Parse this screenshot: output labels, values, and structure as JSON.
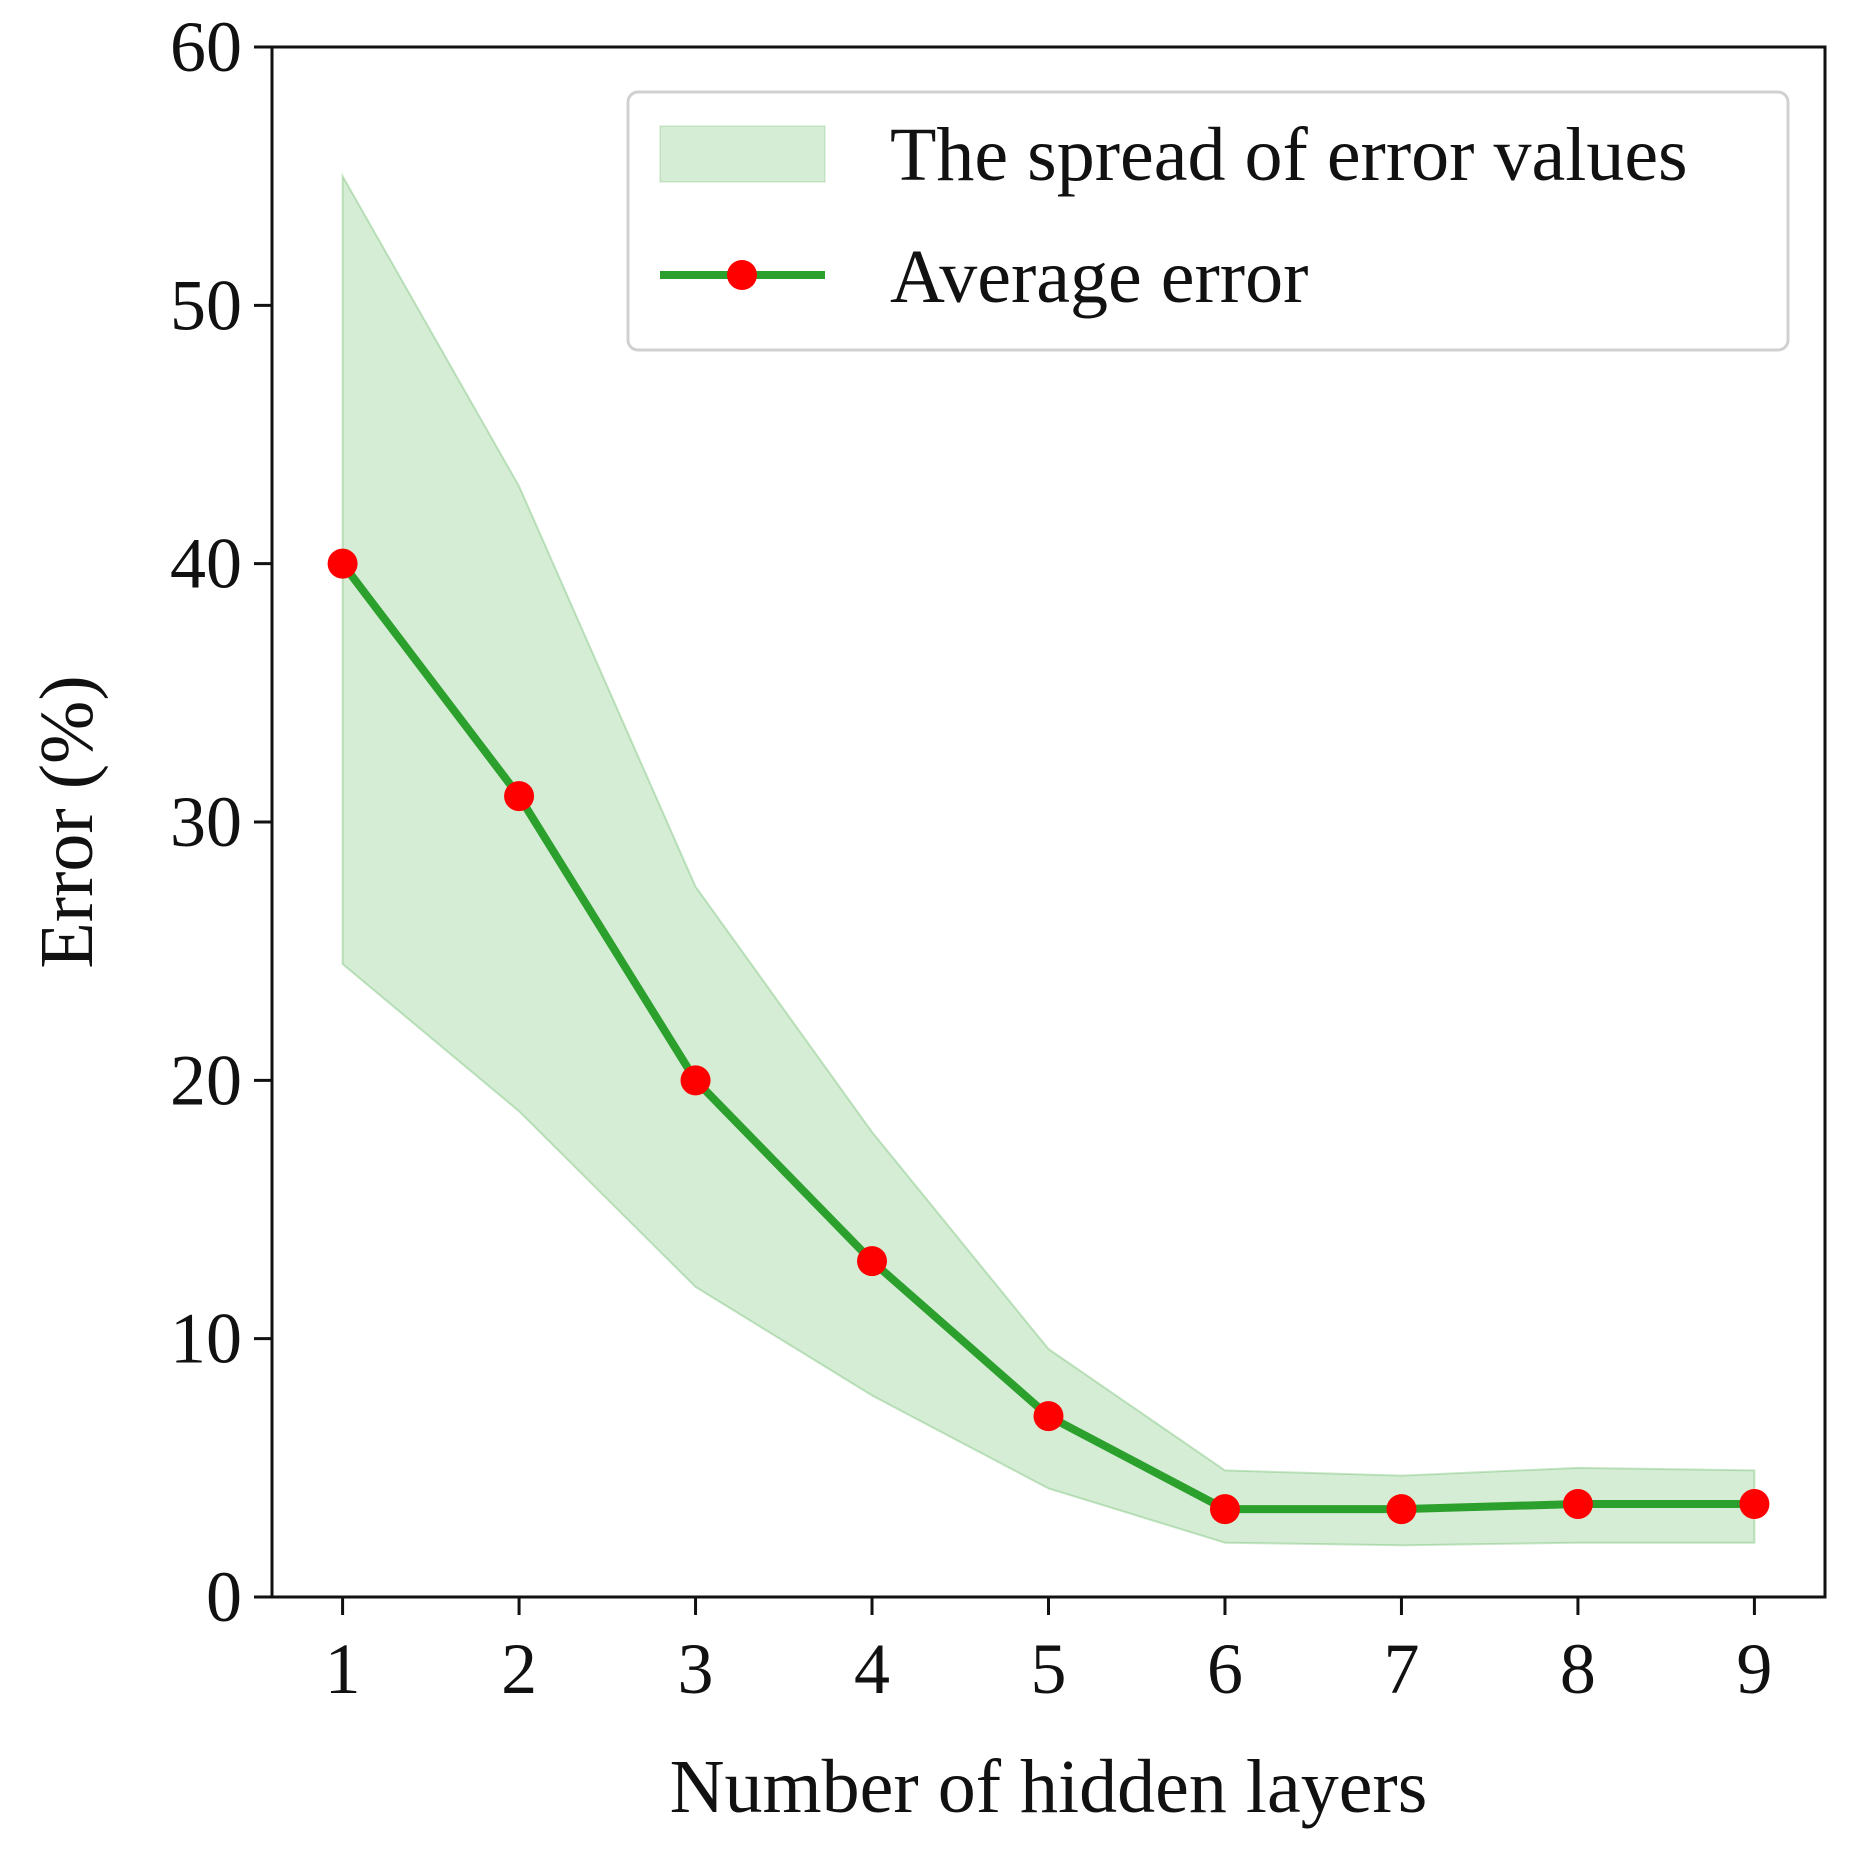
{
  "chart_data": {
    "type": "line",
    "xlabel": "Number of hidden layers",
    "ylabel": "Error (%)",
    "xlim": [
      0.6,
      9.4
    ],
    "ylim": [
      0,
      60
    ],
    "x_ticks": [
      "1",
      "2",
      "3",
      "4",
      "5",
      "6",
      "7",
      "8",
      "9"
    ],
    "y_ticks": [
      "0",
      "10",
      "20",
      "30",
      "40",
      "50",
      "60"
    ],
    "x": [
      1,
      2,
      3,
      4,
      5,
      6,
      7,
      8,
      9
    ],
    "series": [
      {
        "name": "Average error",
        "values": [
          40,
          31,
          20,
          13,
          7,
          3.4,
          3.4,
          3.6,
          3.6
        ],
        "line_color": "#2ca02c",
        "marker_color": "#ff0000"
      }
    ],
    "band": {
      "name": "The spread of error values",
      "upper": [
        55,
        43,
        27.5,
        18,
        9.6,
        4.9,
        4.7,
        5,
        4.9
      ],
      "lower": [
        24.5,
        18.8,
        12,
        7.8,
        4.2,
        2.1,
        2.0,
        2.1,
        2.1
      ],
      "color": "#2ca02c",
      "opacity": 0.2
    },
    "legend": {
      "position": "top-right"
    },
    "grid": false
  }
}
